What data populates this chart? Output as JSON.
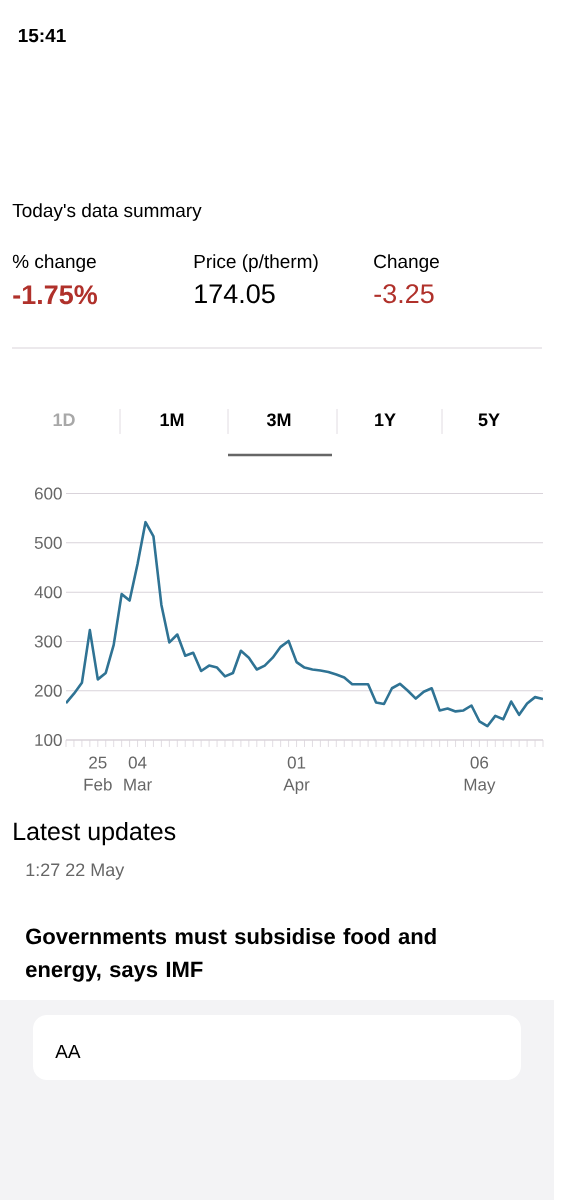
{
  "chart_data": {
    "type": "line",
    "categories": [
      null,
      null,
      null,
      null,
      "25 Feb",
      null,
      null,
      null,
      null,
      "04 Mar",
      null,
      null,
      null,
      null,
      null,
      null,
      null,
      null,
      null,
      null,
      null,
      null,
      null,
      null,
      null,
      null,
      null,
      null,
      null,
      "01 Apr",
      null,
      null,
      null,
      null,
      null,
      null,
      null,
      null,
      null,
      null,
      null,
      null,
      null,
      null,
      null,
      null,
      null,
      null,
      null,
      null,
      null,
      null,
      "06 May",
      null,
      null,
      null,
      null,
      null,
      null,
      null,
      null
    ],
    "values": [
      175,
      194,
      216,
      323,
      223,
      236,
      293,
      396,
      383,
      457,
      542,
      513,
      374,
      298,
      314,
      271,
      277,
      240,
      251,
      247,
      229,
      236,
      281,
      267,
      243,
      251,
      267,
      289,
      301,
      258,
      247,
      243,
      241,
      238,
      233,
      227,
      213,
      213,
      213,
      176,
      173,
      205,
      214,
      200,
      184,
      198,
      205,
      160,
      164,
      158,
      160,
      170,
      138,
      128,
      149,
      142,
      178,
      151,
      174,
      187,
      183
    ],
    "color": "#2f7394",
    "ylim": [
      100,
      600
    ],
    "yticks": [
      100,
      200,
      300,
      400,
      500,
      600
    ],
    "grid": "y",
    "annotations": [
      "15:41",
      "Today's data summary",
      "% change",
      "-1.75%",
      "Price (p/therm)",
      "174.05",
      "Change",
      "-3.25",
      "1D",
      "1M",
      "3M",
      "1Y",
      "5Y",
      "Latest updates",
      "1:27 22 May",
      "Governments must subsidise food and energy, says IMF",
      "AA"
    ]
  }
}
